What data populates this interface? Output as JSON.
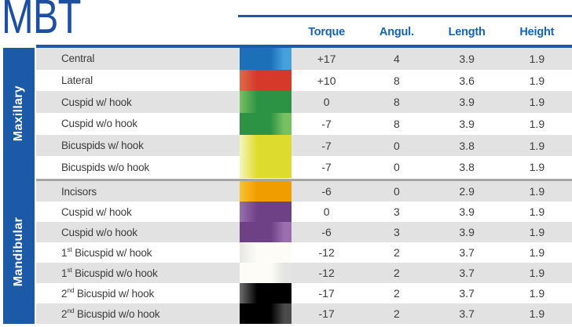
{
  "title": "MBT",
  "columns": [
    "Torque",
    "Angul.",
    "Length",
    "Height"
  ],
  "ui_colors": {
    "accent_blue": "#1c59a7",
    "title_blue": "#1d4fa1",
    "header_text_blue": "#1463b5",
    "row_stripe_gray": "#e2e2e3",
    "section_divider_gray": "#a6a6a6",
    "body_text": "#3c3c3c"
  },
  "groups": [
    {
      "name": "Maxillary",
      "rows": [
        {
          "label": "Central",
          "sup": "",
          "label_rest": "",
          "color_name": "blue",
          "color_main": "#1c70b7",
          "color_light": "#47a2dc",
          "light_side": "right",
          "torque": "+17",
          "angul": "4",
          "length": "3.9",
          "height": "1.9",
          "shade": "gray"
        },
        {
          "label": "Lateral",
          "sup": "",
          "label_rest": "",
          "color_name": "red",
          "color_main": "#d4392a",
          "color_light": "#e06a4a",
          "light_side": "left",
          "torque": "+10",
          "angul": "8",
          "length": "3.6",
          "height": "1.9",
          "shade": "white"
        },
        {
          "label": "Cuspid w/ hook",
          "sup": "",
          "label_rest": "",
          "color_name": "green",
          "color_main": "#2d9344",
          "color_light": "#77c163",
          "light_side": "left",
          "torque": "0",
          "angul": "8",
          "length": "3.9",
          "height": "1.9",
          "shade": "gray"
        },
        {
          "label": "Cuspid w/o hook",
          "sup": "",
          "label_rest": "",
          "color_name": "green",
          "color_main": "#2d9344",
          "color_light": "#77c163",
          "light_side": "right",
          "torque": "-7",
          "angul": "8",
          "length": "3.9",
          "height": "1.9",
          "shade": "white"
        },
        {
          "label": "Bicuspids w/ hook",
          "sup": "",
          "label_rest": "",
          "color_name": "yellow",
          "color_main": "#dcdb2e",
          "color_light": "#f6f6bb",
          "light_side": "left",
          "torque": "-7",
          "angul": "0",
          "length": "3.8",
          "height": "1.9",
          "shade": "gray"
        },
        {
          "label": "Bicuspids w/o hook",
          "sup": "",
          "label_rest": "",
          "color_name": "yellow",
          "color_main": "#dcdb2e",
          "color_light": "#f6f6bb",
          "light_side": "left",
          "torque": "-7",
          "angul": "0",
          "length": "3.8",
          "height": "1.9",
          "shade": "white"
        }
      ]
    },
    {
      "name": "Mandibular",
      "rows": [
        {
          "label": "Incisors",
          "sup": "",
          "label_rest": "",
          "color_name": "orange",
          "color_main": "#f09d00",
          "color_light": "#fbc332",
          "light_side": "left",
          "torque": "-6",
          "angul": "0",
          "length": "2.9",
          "height": "1.9",
          "shade": "gray"
        },
        {
          "label": "Cuspid w/ hook",
          "sup": "",
          "label_rest": "",
          "color_name": "purple",
          "color_main": "#6e4086",
          "color_light": "#9a6fae",
          "light_side": "left",
          "torque": "0",
          "angul": "3",
          "length": "3.9",
          "height": "1.9",
          "shade": "white"
        },
        {
          "label": "Cuspid w/o hook",
          "sup": "",
          "label_rest": "",
          "color_name": "purple",
          "color_main": "#6e4086",
          "color_light": "#9a6fae",
          "light_side": "right",
          "torque": "-6",
          "angul": "3",
          "length": "3.9",
          "height": "1.9",
          "shade": "gray"
        },
        {
          "label": "1",
          "sup": "st",
          "label_rest": " Bicuspid w/ hook",
          "color_name": "white",
          "color_main": "#fdfcf7",
          "color_light": "#e7e7e5",
          "light_side": "left",
          "torque": "-12",
          "angul": "2",
          "length": "3.7",
          "height": "1.9",
          "shade": "white"
        },
        {
          "label": "1",
          "sup": "st",
          "label_rest": " Bicuspid w/o hook",
          "color_name": "white",
          "color_main": "#fdfcf7",
          "color_light": "#e4e4e2",
          "light_side": "right",
          "torque": "-12",
          "angul": "2",
          "length": "3.7",
          "height": "1.9",
          "shade": "gray"
        },
        {
          "label": "2",
          "sup": "nd",
          "label_rest": " Bicuspid w/ hook",
          "color_name": "black",
          "color_main": "#000000",
          "color_light": "#6e6e6e",
          "light_side": "left",
          "torque": "-17",
          "angul": "2",
          "length": "3.7",
          "height": "1.9",
          "shade": "white"
        },
        {
          "label": "2",
          "sup": "nd",
          "label_rest": " Bicuspid w/o hook",
          "color_name": "black",
          "color_main": "#000000",
          "color_light": "#4b4b4b",
          "light_side": "right",
          "torque": "-17",
          "angul": "2",
          "length": "3.7",
          "height": "1.9",
          "shade": "gray"
        }
      ]
    }
  ]
}
